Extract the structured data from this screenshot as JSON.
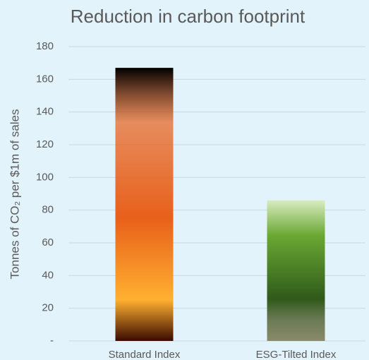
{
  "chart_data": {
    "type": "bar",
    "title": "Reduction in carbon footprint",
    "y_label": "Tonnes of CO₂ per $1m of sales",
    "categories": [
      "Standard Index",
      "ESG-Tilted Index"
    ],
    "values": [
      167,
      86
    ],
    "colors": [
      "#e8601a",
      "#6aa833"
    ],
    "ylim": [
      0,
      180
    ],
    "yticks": [
      {
        "value": 0,
        "label": "-"
      },
      20,
      40,
      60,
      80,
      100,
      120,
      140,
      160,
      180
    ],
    "grid": true
  }
}
